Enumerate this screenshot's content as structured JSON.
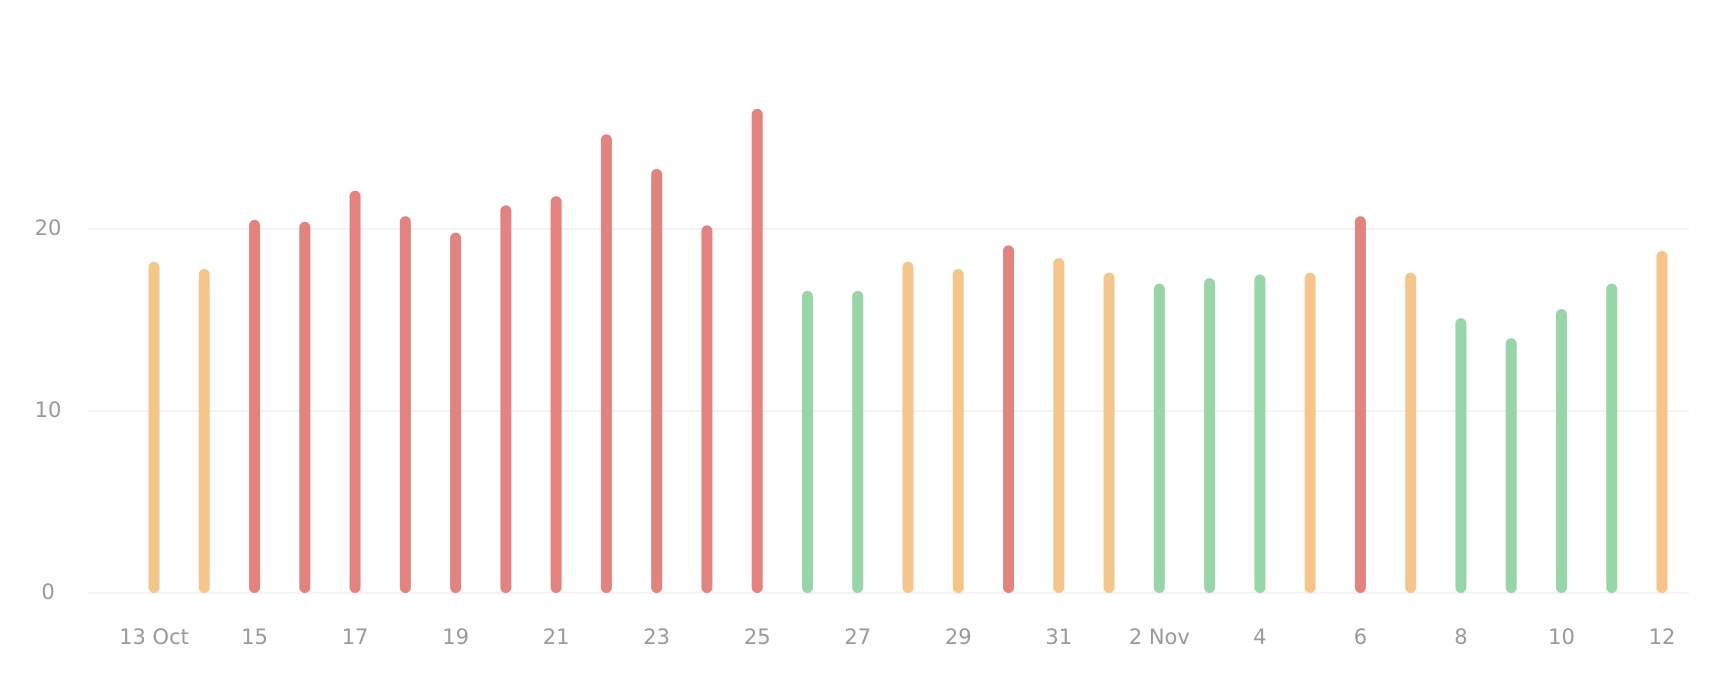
{
  "chart_data": {
    "type": "bar",
    "categories": [
      "13 Oct",
      null,
      "15",
      null,
      "17",
      null,
      "19",
      null,
      "21",
      null,
      "23",
      null,
      "25",
      null,
      "27",
      null,
      "29",
      null,
      "31",
      null,
      "2 Nov",
      null,
      "4",
      null,
      "6",
      null,
      "8",
      null,
      "10",
      null,
      "12"
    ],
    "values": [
      18.2,
      17.8,
      20.5,
      20.4,
      22.1,
      20.7,
      19.8,
      21.3,
      21.8,
      25.2,
      23.3,
      20.2,
      26.6,
      16.6,
      16.6,
      18.2,
      17.8,
      19.1,
      18.4,
      17.6,
      17.0,
      17.3,
      17.5,
      17.6,
      20.7,
      17.6,
      15.1,
      14.0,
      15.6,
      17.0,
      18.8
    ],
    "colors": [
      "#f5c68c",
      "#f5c68c",
      "#e2837f",
      "#e2837f",
      "#e2837f",
      "#e2837f",
      "#e2837f",
      "#e2837f",
      "#e2837f",
      "#e2837f",
      "#e2837f",
      "#e2837f",
      "#e2837f",
      "#98d6a9",
      "#98d6a9",
      "#f5c68c",
      "#f5c68c",
      "#e2837f",
      "#f5c68c",
      "#f5c68c",
      "#98d6a9",
      "#98d6a9",
      "#98d6a9",
      "#f5c68c",
      "#e2837f",
      "#f5c68c",
      "#98d6a9",
      "#98d6a9",
      "#98d6a9",
      "#98d6a9",
      "#f5c68c"
    ],
    "ylim": [
      0,
      30
    ],
    "yticks": [
      0,
      10,
      20
    ],
    "grid": true
  }
}
